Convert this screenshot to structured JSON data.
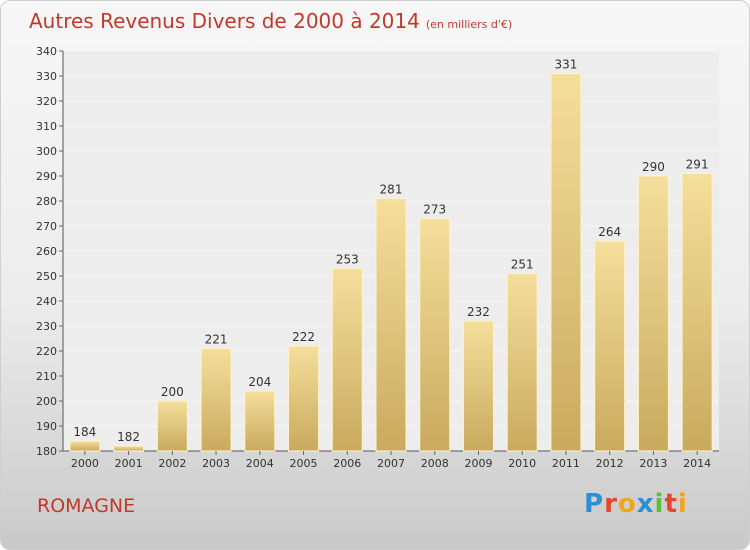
{
  "title": "Autres Revenus Divers de 2000 à 2014",
  "subtitle": "(en milliers d'€)",
  "city": "ROMAGNE",
  "logo": {
    "text": "Proxiti",
    "colors": [
      "#2a8fd6",
      "#e8452c",
      "#f2a51a",
      "#2a8fd6",
      "#5bbf3a",
      "#e8452c",
      "#f2a51a"
    ]
  },
  "colors": {
    "bar_top": "#f5df9c",
    "bar_bottom": "#c9aa5e",
    "title": "#c0392b"
  },
  "chart_data": {
    "type": "bar",
    "title": "Autres Revenus Divers de 2000 à 2014",
    "xlabel": "",
    "ylabel": "",
    "categories": [
      "2000",
      "2001",
      "2002",
      "2003",
      "2004",
      "2005",
      "2006",
      "2007",
      "2008",
      "2009",
      "2010",
      "2011",
      "2012",
      "2013",
      "2014"
    ],
    "values": [
      184,
      182,
      200,
      221,
      204,
      222,
      253,
      281,
      273,
      232,
      251,
      331,
      264,
      290,
      291
    ],
    "ylim": [
      180,
      340
    ],
    "yticks": [
      180,
      190,
      200,
      210,
      220,
      230,
      240,
      250,
      260,
      270,
      280,
      290,
      300,
      310,
      320,
      330,
      340
    ],
    "grid": "horizontal"
  }
}
